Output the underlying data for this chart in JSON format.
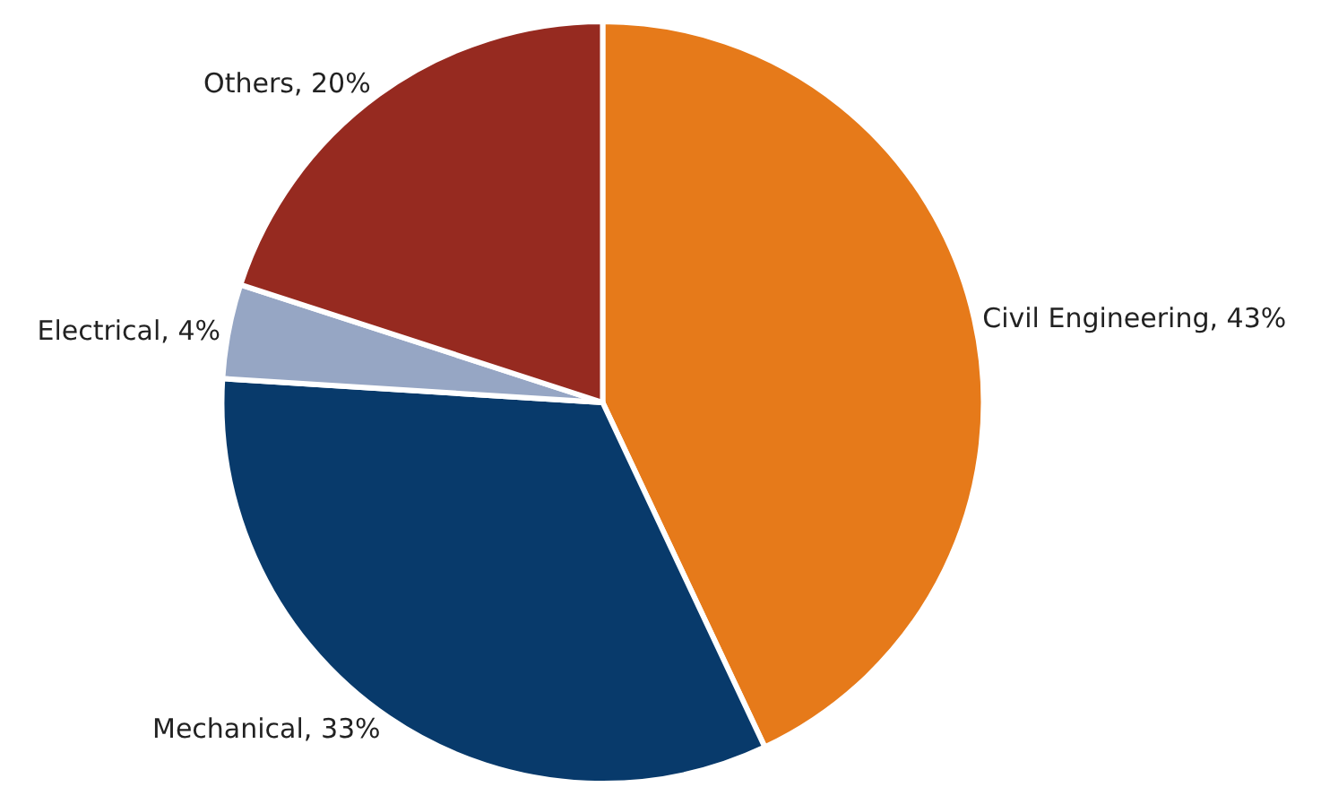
{
  "chart_data": {
    "type": "pie",
    "categories": [
      "Civil Engineering",
      "Mechanical",
      "Electrical",
      "Others"
    ],
    "values": [
      43,
      33,
      4,
      20
    ],
    "colors": [
      "#e67a1a",
      "#083a6b",
      "#96a6c4",
      "#962a20"
    ],
    "value_labels": [
      "43%",
      "33%",
      "4%",
      "20%"
    ],
    "legend": false
  }
}
